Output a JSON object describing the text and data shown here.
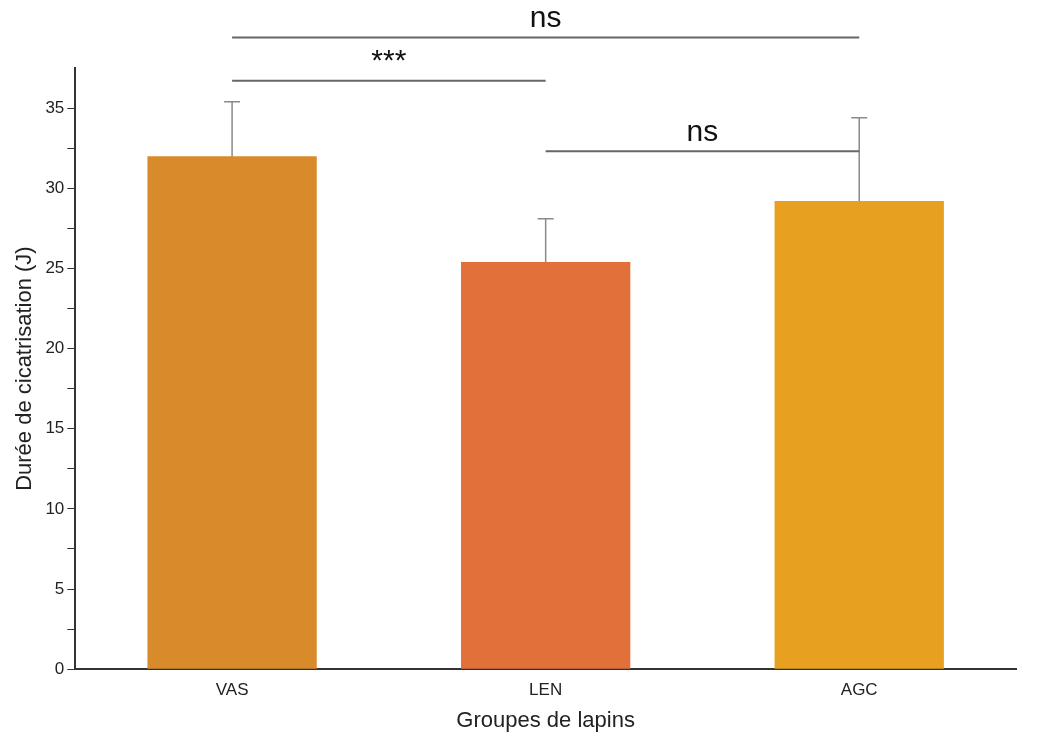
{
  "chart_data": {
    "type": "bar",
    "xlabel": "Groupes de lapins",
    "ylabel": "Durée de cicatrisation (J)",
    "categories": [
      "VAS",
      "LEN",
      "AGC"
    ],
    "values": [
      32.0,
      25.4,
      29.2
    ],
    "errors": [
      3.4,
      2.7,
      5.2
    ],
    "colors": [
      "#d98b2b",
      "#e2703a",
      "#e8a020"
    ],
    "ylim": [
      0,
      37.5
    ],
    "yticks": [
      0,
      {
        "value": 2.5,
        "label": null
      },
      5,
      {
        "value": 7.5,
        "label": null
      },
      10,
      {
        "value": 12.5,
        "label": null
      },
      15,
      {
        "value": 17.5,
        "label": null
      },
      20,
      {
        "value": 22.5,
        "label": null
      },
      25,
      {
        "value": 27.5,
        "label": null
      },
      30,
      {
        "value": 32.5,
        "label": null
      },
      35
    ],
    "annotations": [
      "***",
      "ns",
      "ns"
    ],
    "grid": false,
    "legend": false
  }
}
